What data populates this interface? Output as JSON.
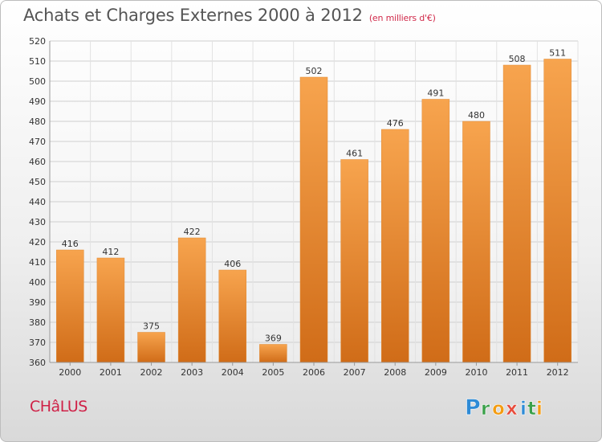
{
  "header": {
    "title": "Achats et Charges Externes 2000 à 2012",
    "subtitle": "(en milliers d'€)"
  },
  "footer": {
    "commune": "CHâLUS",
    "logo_text": "Proxiti",
    "logo_letters": [
      "P",
      "r",
      "o",
      "x",
      "i",
      "t",
      "i"
    ],
    "logo_colors": [
      "#2e8bd6",
      "#3aa04a",
      "#f39c12",
      "#e74c3c",
      "#2e8bd6",
      "#3aa04a",
      "#f39c12"
    ]
  },
  "chart_data": {
    "type": "bar",
    "title": "Achats et Charges Externes 2000 à 2012",
    "subtitle": "(en milliers d'€)",
    "categories": [
      "2000",
      "2001",
      "2002",
      "2003",
      "2004",
      "2005",
      "2006",
      "2007",
      "2008",
      "2009",
      "2010",
      "2011",
      "2012"
    ],
    "values": [
      416,
      412,
      375,
      422,
      406,
      369,
      502,
      461,
      476,
      491,
      480,
      508,
      511
    ],
    "ylim": [
      360,
      520
    ],
    "yticks": [
      360,
      370,
      380,
      390,
      400,
      410,
      420,
      430,
      440,
      450,
      460,
      470,
      480,
      490,
      500,
      510,
      520
    ],
    "grid": true,
    "bar_color_top": "#f7a44e",
    "bar_color_bottom": "#d06c18"
  }
}
